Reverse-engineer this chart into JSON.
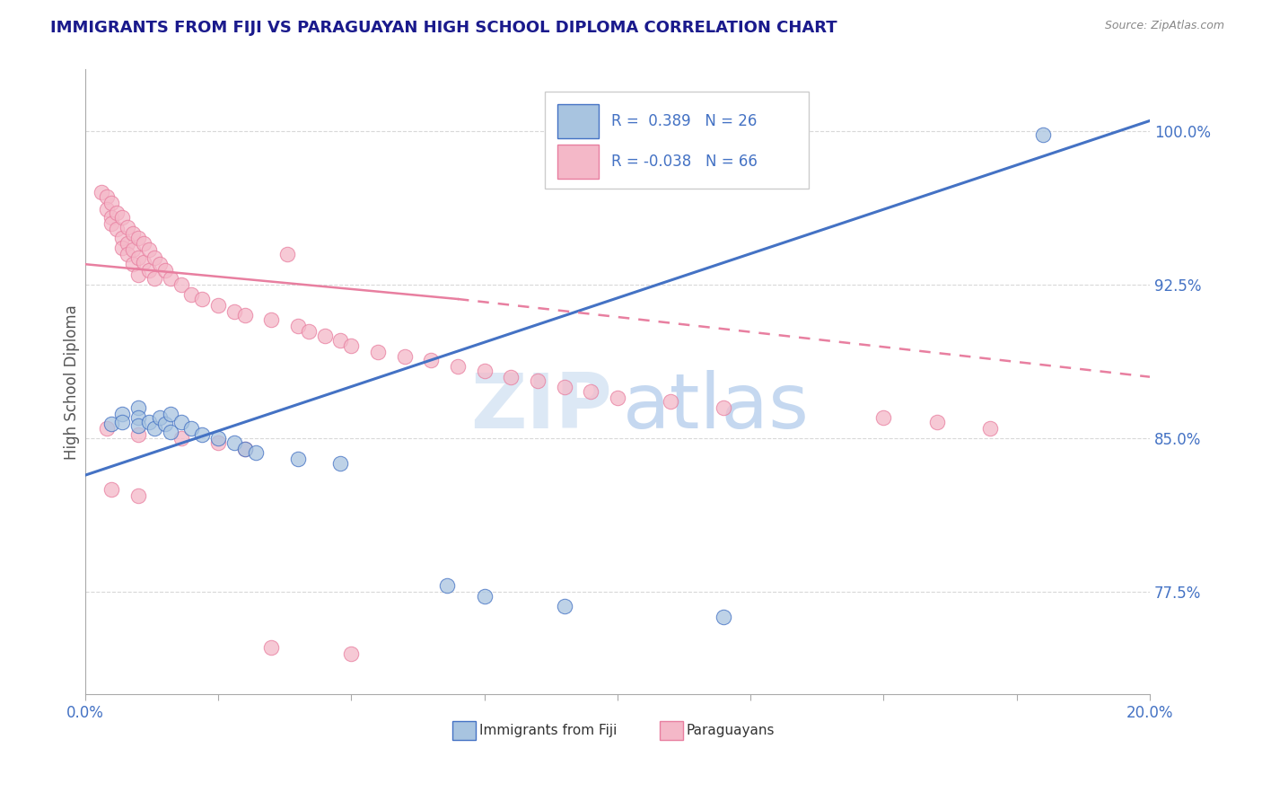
{
  "title": "IMMIGRANTS FROM FIJI VS PARAGUAYAN HIGH SCHOOL DIPLOMA CORRELATION CHART",
  "source": "Source: ZipAtlas.com",
  "ylabel": "High School Diploma",
  "legend_entries": [
    {
      "label": "Immigrants from Fiji",
      "R": "0.389",
      "N": "26",
      "color": "#a8c4e0",
      "edge": "#4472c4"
    },
    {
      "label": "Paraguayans",
      "R": "-0.038",
      "N": "66",
      "color": "#f4b8c8",
      "edge": "#e87fa0"
    }
  ],
  "fiji_scatter": [
    [
      0.005,
      0.857
    ],
    [
      0.007,
      0.862
    ],
    [
      0.007,
      0.858
    ],
    [
      0.01,
      0.865
    ],
    [
      0.01,
      0.86
    ],
    [
      0.01,
      0.856
    ],
    [
      0.012,
      0.858
    ],
    [
      0.013,
      0.855
    ],
    [
      0.014,
      0.86
    ],
    [
      0.015,
      0.857
    ],
    [
      0.016,
      0.853
    ],
    [
      0.016,
      0.862
    ],
    [
      0.018,
      0.858
    ],
    [
      0.02,
      0.855
    ],
    [
      0.022,
      0.852
    ],
    [
      0.025,
      0.85
    ],
    [
      0.028,
      0.848
    ],
    [
      0.03,
      0.845
    ],
    [
      0.032,
      0.843
    ],
    [
      0.04,
      0.84
    ],
    [
      0.048,
      0.838
    ],
    [
      0.068,
      0.778
    ],
    [
      0.075,
      0.773
    ],
    [
      0.09,
      0.768
    ],
    [
      0.12,
      0.763
    ],
    [
      0.18,
      0.998
    ]
  ],
  "paraguay_scatter": [
    [
      0.003,
      0.97
    ],
    [
      0.004,
      0.968
    ],
    [
      0.004,
      0.962
    ],
    [
      0.005,
      0.965
    ],
    [
      0.005,
      0.958
    ],
    [
      0.005,
      0.955
    ],
    [
      0.006,
      0.96
    ],
    [
      0.006,
      0.952
    ],
    [
      0.007,
      0.958
    ],
    [
      0.007,
      0.948
    ],
    [
      0.007,
      0.943
    ],
    [
      0.008,
      0.953
    ],
    [
      0.008,
      0.945
    ],
    [
      0.008,
      0.94
    ],
    [
      0.009,
      0.95
    ],
    [
      0.009,
      0.942
    ],
    [
      0.009,
      0.935
    ],
    [
      0.01,
      0.948
    ],
    [
      0.01,
      0.938
    ],
    [
      0.01,
      0.93
    ],
    [
      0.011,
      0.945
    ],
    [
      0.011,
      0.936
    ],
    [
      0.012,
      0.942
    ],
    [
      0.012,
      0.932
    ],
    [
      0.013,
      0.938
    ],
    [
      0.013,
      0.928
    ],
    [
      0.014,
      0.935
    ],
    [
      0.015,
      0.932
    ],
    [
      0.016,
      0.928
    ],
    [
      0.018,
      0.925
    ],
    [
      0.02,
      0.92
    ],
    [
      0.022,
      0.918
    ],
    [
      0.025,
      0.915
    ],
    [
      0.028,
      0.912
    ],
    [
      0.03,
      0.91
    ],
    [
      0.035,
      0.908
    ],
    [
      0.038,
      0.94
    ],
    [
      0.04,
      0.905
    ],
    [
      0.042,
      0.902
    ],
    [
      0.045,
      0.9
    ],
    [
      0.048,
      0.898
    ],
    [
      0.05,
      0.895
    ],
    [
      0.055,
      0.892
    ],
    [
      0.06,
      0.89
    ],
    [
      0.065,
      0.888
    ],
    [
      0.07,
      0.885
    ],
    [
      0.075,
      0.883
    ],
    [
      0.08,
      0.88
    ],
    [
      0.085,
      0.878
    ],
    [
      0.09,
      0.875
    ],
    [
      0.095,
      0.873
    ],
    [
      0.1,
      0.87
    ],
    [
      0.11,
      0.868
    ],
    [
      0.12,
      0.865
    ],
    [
      0.15,
      0.86
    ],
    [
      0.16,
      0.858
    ],
    [
      0.17,
      0.855
    ],
    [
      0.004,
      0.855
    ],
    [
      0.01,
      0.852
    ],
    [
      0.018,
      0.85
    ],
    [
      0.025,
      0.848
    ],
    [
      0.03,
      0.845
    ],
    [
      0.035,
      0.748
    ],
    [
      0.05,
      0.745
    ],
    [
      0.005,
      0.825
    ],
    [
      0.01,
      0.822
    ]
  ],
  "xlim": [
    0.0,
    0.2
  ],
  "ylim": [
    0.725,
    1.03
  ],
  "yticks": [
    0.775,
    0.85,
    0.925,
    1.0
  ],
  "ytick_labels": [
    "77.5%",
    "85.0%",
    "92.5%",
    "100.0%"
  ],
  "xticks": [
    0.0,
    0.025,
    0.05,
    0.075,
    0.1,
    0.125,
    0.15,
    0.175,
    0.2
  ],
  "fiji_line": [
    0.0,
    0.832,
    0.2,
    1.005
  ],
  "paraguay_line_solid": [
    0.0,
    0.935,
    0.07,
    0.918
  ],
  "paraguay_line_dashed": [
    0.07,
    0.918,
    0.2,
    0.88
  ],
  "fiji_line_color": "#4472c4",
  "paraguay_line_color": "#e87fa0",
  "scatter_fiji_color": "#a8c4e0",
  "scatter_paraguay_color": "#f4b8c8",
  "scatter_fiji_edge": "#4472c4",
  "scatter_paraguay_edge": "#e87fa0",
  "title_color": "#1a1a8c",
  "source_color": "#888888",
  "axis_label_color": "#555555",
  "ytick_color": "#4472c4",
  "xtick_color": "#4472c4",
  "grid_color": "#d8d8d8",
  "watermark_zip_color": "#dce8f5",
  "watermark_atlas_color": "#c5d8f0"
}
